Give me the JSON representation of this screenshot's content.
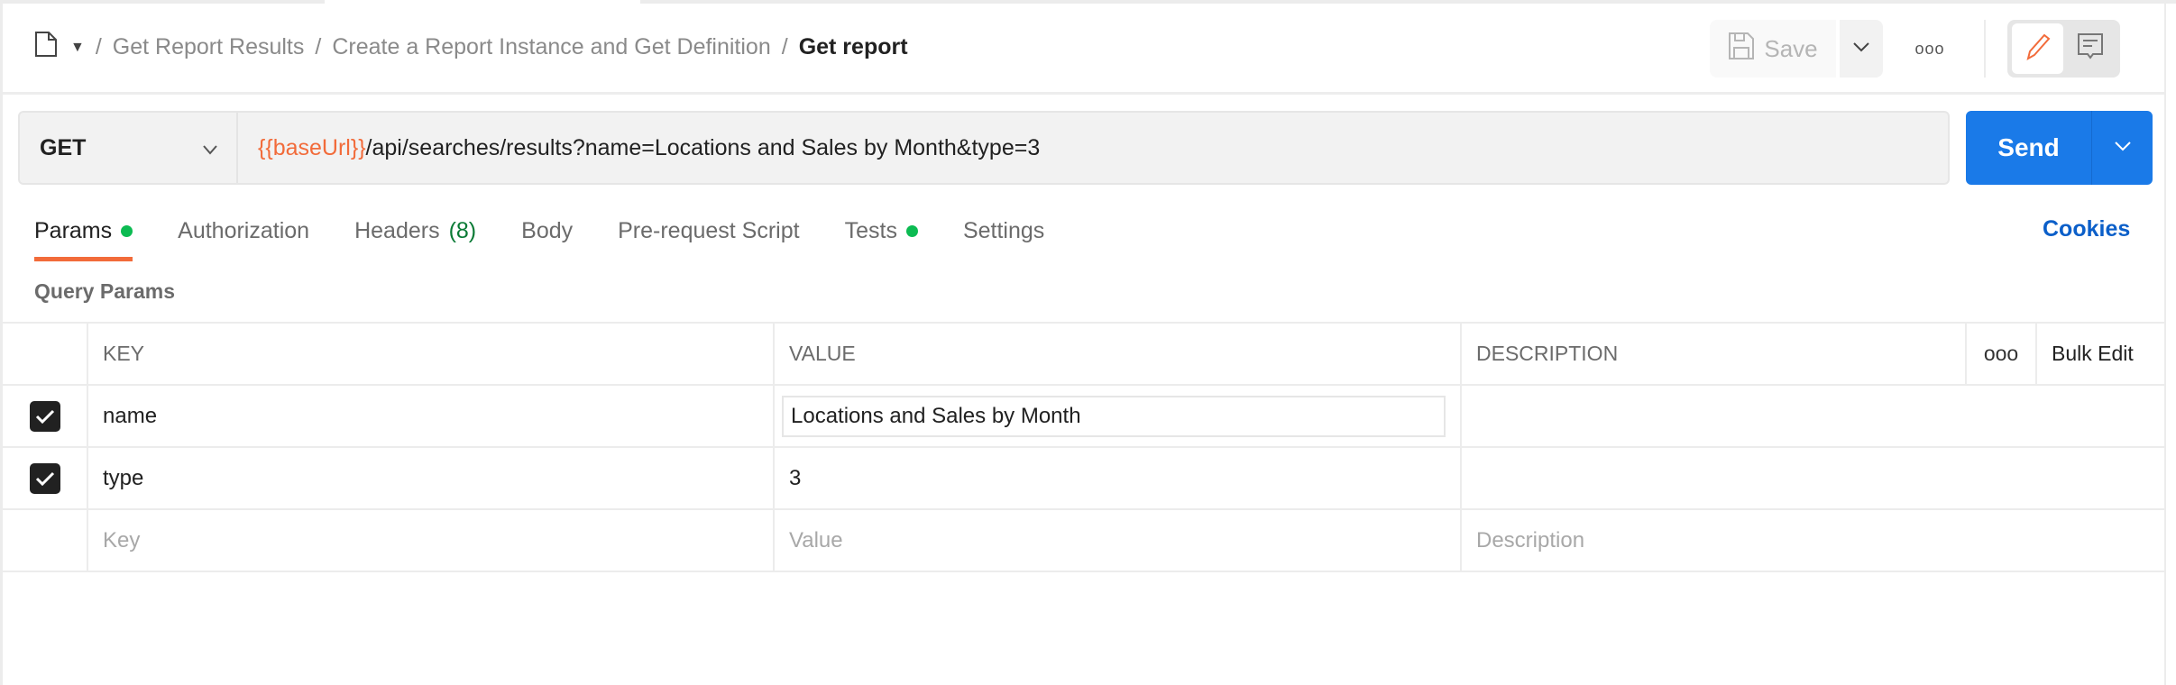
{
  "breadcrumb": {
    "items": [
      "Get Report Results",
      "Create a Report Instance and Get Definition"
    ],
    "current": "Get report",
    "separator": "/"
  },
  "toolbar": {
    "save_label": "Save",
    "more_label": "ooo"
  },
  "request": {
    "method": "GET",
    "url_variable": "{{baseUrl}}",
    "url_path": "/api/searches/results?name=Locations and Sales by Month&type=3",
    "send_label": "Send"
  },
  "tabs": [
    {
      "label": "Params",
      "dot": true
    },
    {
      "label": "Authorization"
    },
    {
      "label": "Headers",
      "count": "(8)"
    },
    {
      "label": "Body"
    },
    {
      "label": "Pre-request Script"
    },
    {
      "label": "Tests",
      "dot": true
    },
    {
      "label": "Settings"
    }
  ],
  "cookies_label": "Cookies",
  "query_params": {
    "title": "Query Params",
    "columns": [
      "KEY",
      "VALUE",
      "DESCRIPTION"
    ],
    "more_label": "ooo",
    "bulk_edit": "Bulk Edit",
    "rows": [
      {
        "key": "name",
        "value": "Locations and Sales by Month",
        "checked": true
      },
      {
        "key": "type",
        "value": "3",
        "checked": true
      }
    ],
    "placeholder": {
      "key": "Key",
      "value": "Value",
      "description": "Description"
    }
  },
  "colors": {
    "accent": "#f26b3a",
    "send": "#1a7ae8",
    "status_dot": "#0cbb52",
    "link": "#0b5fc9"
  }
}
